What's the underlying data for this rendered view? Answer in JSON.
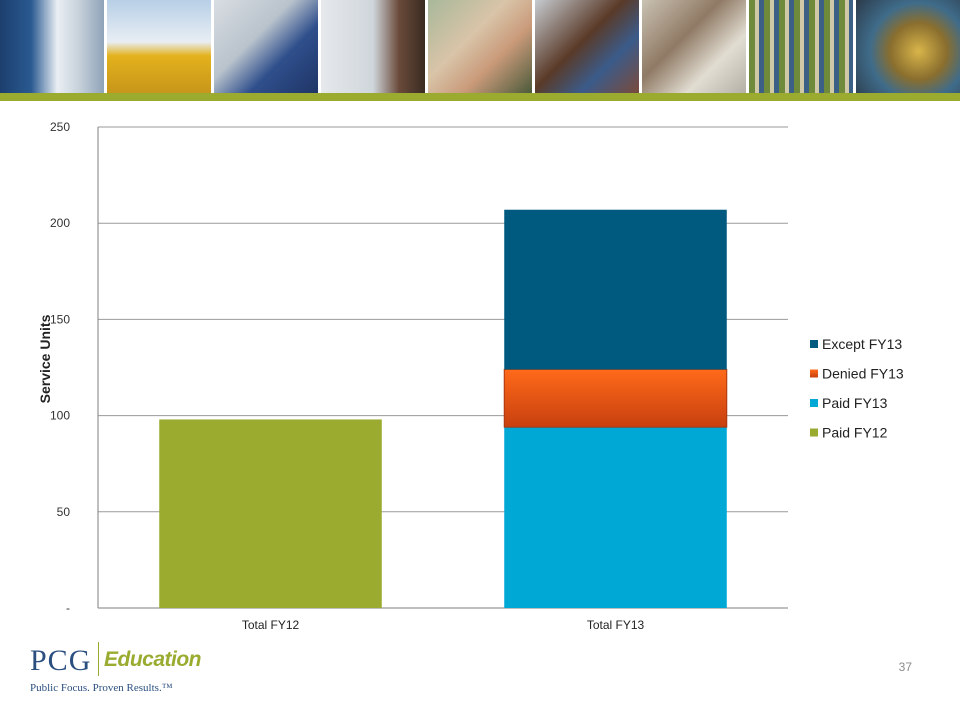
{
  "slide": {
    "page_number": "37",
    "header_photos": [
      "hallway-lockers-photo",
      "school-bus-photo",
      "teacher-at-desk-photo",
      "student-at-whiteboard-photo",
      "smiling-woman-photo",
      "smiling-man-photo",
      "student-writing-photo",
      "bookshelf-photo",
      "globe-photo"
    ],
    "accent_color": "#9aab30"
  },
  "logo": {
    "brand": "PCG",
    "division": "Education",
    "tagline": "Public Focus. Proven Results.™"
  },
  "chart_data": {
    "type": "bar",
    "stacked": true,
    "title": "",
    "xlabel": "",
    "ylabel": "Service Units",
    "ylim": [
      0,
      250
    ],
    "yticks": [
      0,
      50,
      100,
      150,
      200,
      250
    ],
    "ytick_labels": [
      "-",
      "50",
      "100",
      "150",
      "200",
      "250"
    ],
    "grid": true,
    "categories": [
      "Total FY12",
      "Total FY13"
    ],
    "series": [
      {
        "name": "Paid FY12",
        "values": [
          98,
          0
        ],
        "color": "#9aab30"
      },
      {
        "name": "Paid FY13",
        "values": [
          0,
          94
        ],
        "color": "#00a8d6"
      },
      {
        "name": "Denied FY13",
        "values": [
          0,
          30
        ],
        "color": "#e8541a"
      },
      {
        "name": "Except FY13",
        "values": [
          0,
          83
        ],
        "color": "#005a7f"
      }
    ],
    "legend_position": "right",
    "legend_order": [
      "Except FY13",
      "Denied FY13",
      "Paid FY13",
      "Paid FY12"
    ]
  }
}
